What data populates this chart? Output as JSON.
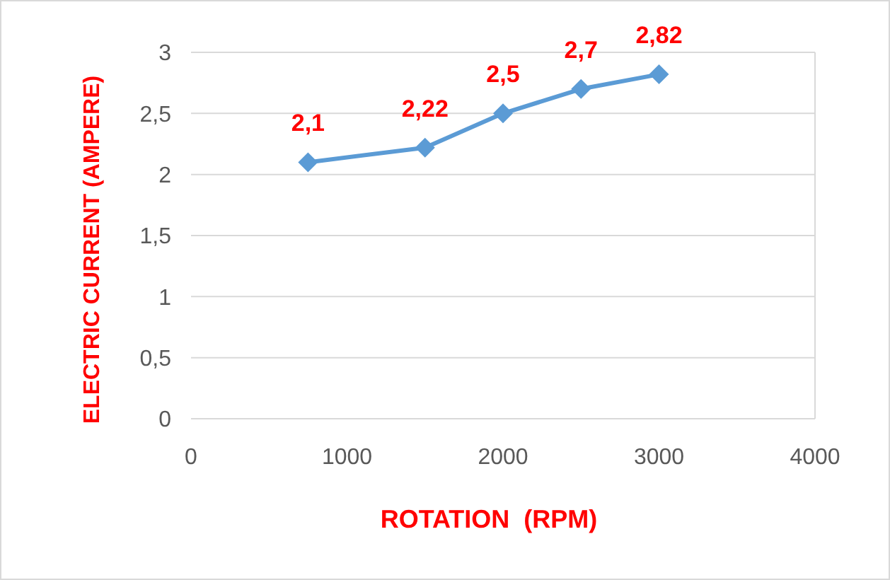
{
  "chart_data": {
    "type": "line",
    "xlabel": "ROTATION  (RPM)",
    "ylabel": "ELECTRIC CURRENT (AMPERE)",
    "x": [
      750,
      1500,
      2000,
      2500,
      3000
    ],
    "series": [
      {
        "color": "#5b9bd5",
        "values": [
          2.1,
          2.22,
          2.5,
          2.7,
          2.82
        ],
        "value_labels": [
          "2,1",
          "2,22",
          "2,5",
          "2,7",
          "2,82"
        ]
      }
    ],
    "xlim": [
      0,
      4000
    ],
    "xticks": [
      0,
      1000,
      2000,
      3000,
      4000
    ],
    "ylim": [
      0,
      3
    ],
    "yticks": [
      0,
      {
        "value": 0.5,
        "label": "0,5"
      },
      1,
      {
        "value": 1.5,
        "label": "1,5"
      },
      2,
      {
        "value": 2.5,
        "label": "2,5"
      },
      3
    ],
    "grid": "y",
    "marker": "diamond",
    "line_style": "solid"
  }
}
